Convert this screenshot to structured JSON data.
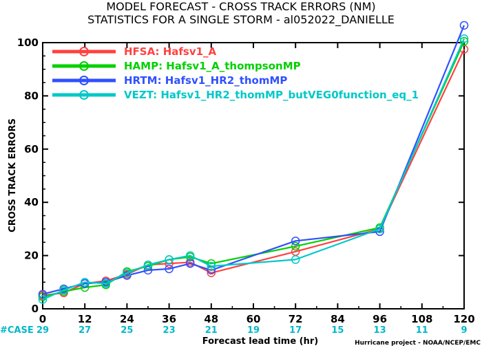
{
  "chart_data": {
    "type": "line",
    "title": "MODEL FORECAST - CROSS TRACK ERRORS (NM)",
    "subtitle": "STATISTICS FOR A SINGLE STORM - al052022_DANIELLE",
    "xlabel": "Forecast lead time (hr)",
    "ylabel": "CROSS TRACK ERRORS",
    "xlim": [
      0,
      120
    ],
    "ylim": [
      0,
      100
    ],
    "x_ticks": [
      "0",
      "12",
      "24",
      "36",
      "48",
      "60",
      "72",
      "84",
      "96",
      "108",
      "120"
    ],
    "y_ticks": [
      "0",
      "20",
      "40",
      "60",
      "80",
      "100"
    ],
    "grid": false,
    "legend_position": "top-left",
    "case_label": "#CASE",
    "case_counts": [
      "29",
      "27",
      "25",
      "23",
      "21",
      "19",
      "17",
      "15",
      "13",
      "11",
      "9"
    ],
    "credit": "Hurricane project - NOAA/NCEP/EMC",
    "series": [
      {
        "name": "HFSA: Hafsv1_A",
        "color": "#ff4040",
        "x": [
          0,
          6,
          12,
          18,
          24,
          30,
          36,
          42,
          48,
          72,
          96,
          120
        ],
        "y": [
          5.0,
          6.0,
          9.5,
          10.5,
          13.0,
          16.5,
          17.0,
          17.5,
          13.5,
          21.5,
          30.0,
          97.5
        ]
      },
      {
        "name": "HAMP: Hafsv1_A_thompsonMP",
        "color": "#00d000",
        "x": [
          0,
          6,
          12,
          18,
          24,
          30,
          36,
          42,
          48,
          72,
          96,
          120
        ],
        "y": [
          4.5,
          6.5,
          8.0,
          9.0,
          14.0,
          16.0,
          18.5,
          19.5,
          17.0,
          23.5,
          30.5,
          100.5
        ]
      },
      {
        "name": "HRTM: Hafsv1_HR2_thomMP",
        "color": "#3050ff",
        "x": [
          0,
          6,
          12,
          18,
          24,
          30,
          36,
          42,
          48,
          72,
          96,
          120
        ],
        "y": [
          5.5,
          7.5,
          9.5,
          10.0,
          12.5,
          14.5,
          15.0,
          17.0,
          14.5,
          25.5,
          29.0,
          106.5
        ]
      },
      {
        "name": "VEZT: Hafsv1_HR2_thomMP_butVEG0function_eq_1",
        "color": "#00c8c8",
        "x": [
          0,
          6,
          12,
          18,
          24,
          30,
          36,
          42,
          48,
          72,
          96,
          120
        ],
        "y": [
          3.5,
          7.0,
          10.0,
          9.5,
          13.5,
          16.5,
          18.5,
          20.0,
          16.0,
          18.5,
          30.0,
          101.5
        ]
      }
    ]
  }
}
